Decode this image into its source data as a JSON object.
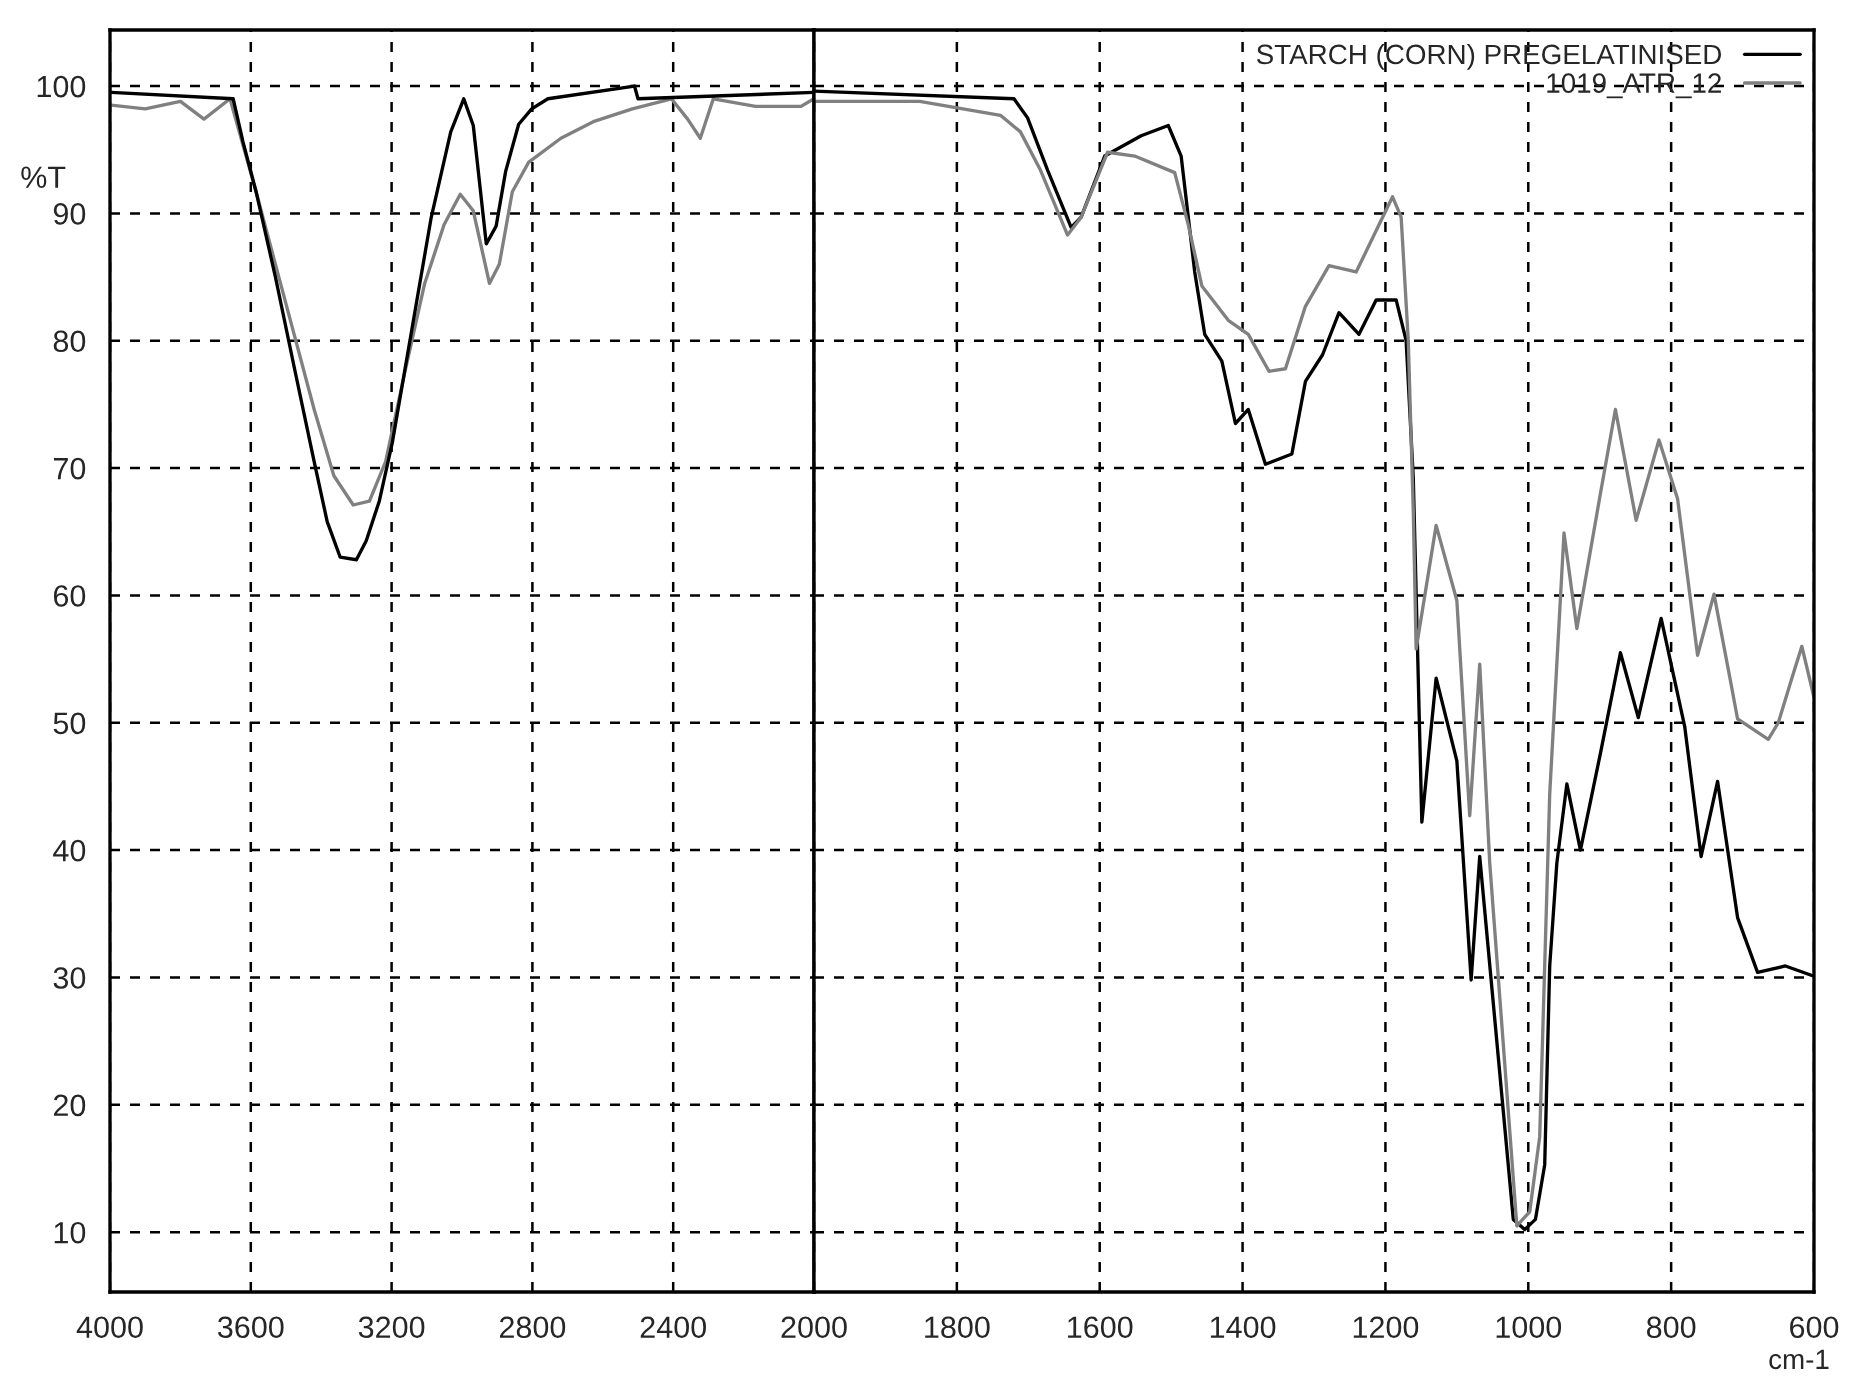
{
  "chart_data": [
    {
      "type": "line",
      "ylabel": "%T",
      "xlim": [
        4000,
        2000
      ],
      "xticks": [
        4000,
        3600,
        3200,
        2800,
        2400
      ],
      "ylim": [
        5.3,
        104.4
      ],
      "yticks": [
        10,
        20,
        30,
        40,
        50,
        60,
        70,
        80,
        90,
        100
      ],
      "grid": true,
      "line_style": "solid",
      "series": [
        {
          "color": "#808080",
          "x": [
            3997,
            3900,
            3800,
            3733,
            3659,
            3585,
            3530,
            3475,
            3420,
            3364,
            3309,
            3263,
            3217,
            3161,
            3106,
            3051,
            3005,
            2968,
            2922,
            2894,
            2857,
            2811,
            2719,
            2627,
            2516,
            2405,
            2359,
            2323,
            2286,
            2166,
            2037,
            2000
          ],
          "values": [
            98.5,
            98.2,
            98.8,
            97.4,
            99,
            91.7,
            86,
            80.3,
            74.6,
            69.4,
            67.1,
            67.4,
            70.5,
            77.7,
            84.5,
            89.1,
            91.5,
            90.2,
            84.5,
            86,
            91.7,
            94,
            95.9,
            97.2,
            98.2,
            99,
            97.4,
            95.9,
            99,
            98.4,
            98.4,
            99
          ]
        },
        {
          "color": "#000000",
          "x": [
            3997,
            3650,
            3622,
            3585,
            3530,
            3475,
            3420,
            3383,
            3346,
            3300,
            3272,
            3235,
            3198,
            3143,
            3088,
            3032,
            2995,
            2968,
            2931,
            2903,
            2876,
            2839,
            2802,
            2756,
            2510,
            2500,
            2000
          ],
          "values": [
            99.5,
            99,
            95.6,
            91.7,
            85,
            77.7,
            70.5,
            65.8,
            63,
            62.8,
            64.3,
            67.4,
            72,
            80.8,
            89.6,
            96.4,
            99,
            96.9,
            87.6,
            89,
            93.3,
            97,
            98.2,
            99,
            100,
            99,
            99.5
          ]
        }
      ]
    },
    {
      "type": "line",
      "xlabel": "cm-1",
      "xlim": [
        2000,
        600
      ],
      "xticks": [
        2000,
        1800,
        1600,
        1400,
        1200,
        1000,
        800,
        600
      ],
      "ylim": [
        5.3,
        104.4
      ],
      "yticks": [
        10,
        20,
        30,
        40,
        50,
        60,
        70,
        80,
        90,
        100
      ],
      "grid": true,
      "tick_labels": "x",
      "legend": "top right",
      "line_style": "solid",
      "series": [
        {
          "name": "STARCH (CORN) PREGELATINISED",
          "color": "#000000",
          "x": [
            2000,
            1720,
            1701,
            1673,
            1640,
            1626,
            1593,
            1542,
            1504,
            1486,
            1467,
            1453,
            1429,
            1410,
            1392,
            1368,
            1331,
            1312,
            1288,
            1265,
            1237,
            1213,
            1185,
            1171,
            1161,
            1149,
            1129,
            1100,
            1080,
            1068,
            1021,
            1005,
            990,
            977,
            970,
            960,
            946,
            927,
            899,
            871,
            846,
            814,
            781,
            758,
            735,
            707,
            679,
            640,
            600
          ],
          "values": [
            99.6,
            99,
            97.5,
            93.4,
            88.9,
            89.7,
            94.5,
            96.1,
            96.9,
            94.5,
            85.4,
            80.5,
            78.4,
            73.5,
            74.6,
            70.3,
            71.1,
            76.8,
            78.9,
            82.2,
            80.5,
            83.2,
            83.2,
            80,
            69.2,
            42.2,
            53.5,
            47,
            29.8,
            39.5,
            11,
            10.2,
            11,
            15.3,
            30.9,
            39,
            45.2,
            40,
            47.6,
            55.5,
            50.4,
            58.2,
            49.7,
            39.5,
            45.4,
            34.7,
            30.4,
            30.9,
            30.1
          ]
        },
        {
          "name": "1019_ATR_12",
          "color": "#808080",
          "x": [
            2000,
            1852,
            1739,
            1711,
            1683,
            1645,
            1626,
            1589,
            1551,
            1495,
            1476,
            1457,
            1420,
            1392,
            1363,
            1340,
            1312,
            1279,
            1241,
            1209,
            1190,
            1178,
            1168,
            1161,
            1157,
            1129,
            1100,
            1082,
            1068,
            1054,
            1016,
            998,
            984,
            970,
            950,
            932,
            899,
            878,
            849,
            817,
            791,
            763,
            740,
            716,
            707,
            664,
            650,
            631,
            617,
            600
          ],
          "values": [
            98.8,
            98.8,
            97.7,
            96.4,
            93.4,
            88.3,
            89.7,
            94.8,
            94.5,
            93.2,
            89.1,
            84.3,
            81.6,
            80.5,
            77.6,
            77.8,
            82.7,
            85.9,
            85.4,
            89.1,
            91.3,
            89.7,
            80,
            66.6,
            55.8,
            65.5,
            59.6,
            42.7,
            54.6,
            39,
            10.5,
            11.6,
            17.5,
            44.4,
            64.9,
            57.4,
            68,
            74.6,
            65.9,
            72.2,
            67.6,
            55.3,
            60.1,
            53,
            50.3,
            48.7,
            50,
            53.5,
            56,
            52
          ]
        }
      ]
    }
  ]
}
